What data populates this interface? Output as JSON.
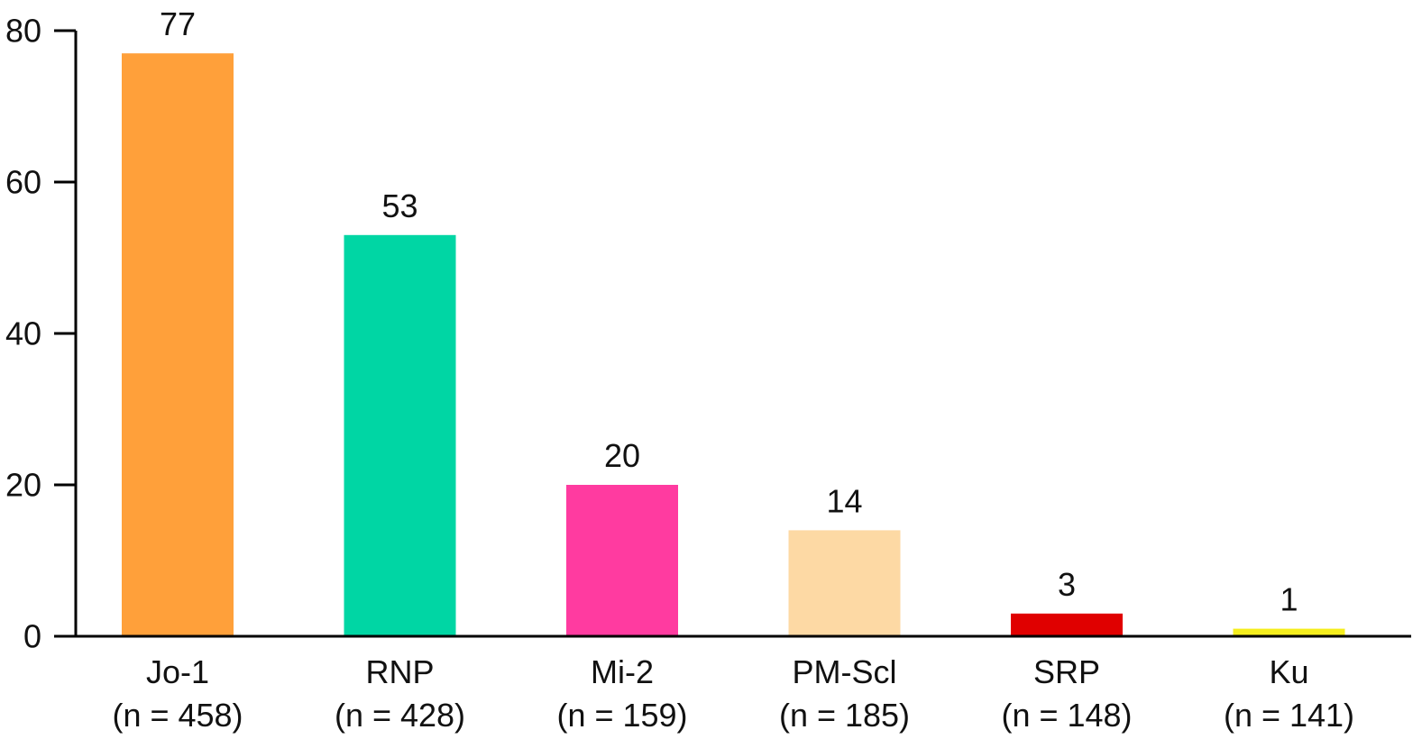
{
  "chart_data": {
    "type": "bar",
    "categories": [
      "Jo-1",
      "RNP",
      "Mi-2",
      "PM-Scl",
      "SRP",
      "Ku"
    ],
    "category_sublabels": [
      "(n = 458)",
      "(n = 428)",
      "(n = 159)",
      "(n = 185)",
      "(n = 148)",
      "(n = 141)"
    ],
    "values": [
      77,
      53,
      20,
      14,
      3,
      1
    ],
    "data_labels": [
      "77",
      "53",
      "20",
      "14",
      "3",
      "1"
    ],
    "bar_colors": [
      "#FFA03A",
      "#00D6A4",
      "#FF3BA0",
      "#FDD9A4",
      "#E00000",
      "#F5EE1E"
    ],
    "title": "",
    "xlabel": "",
    "ylabel": "",
    "ylim": [
      0,
      80
    ],
    "yticks": [
      0,
      20,
      40,
      60,
      80
    ],
    "ytick_labels": [
      "0",
      "20",
      "40",
      "60",
      "80"
    ],
    "grid": false,
    "legend": "none"
  }
}
